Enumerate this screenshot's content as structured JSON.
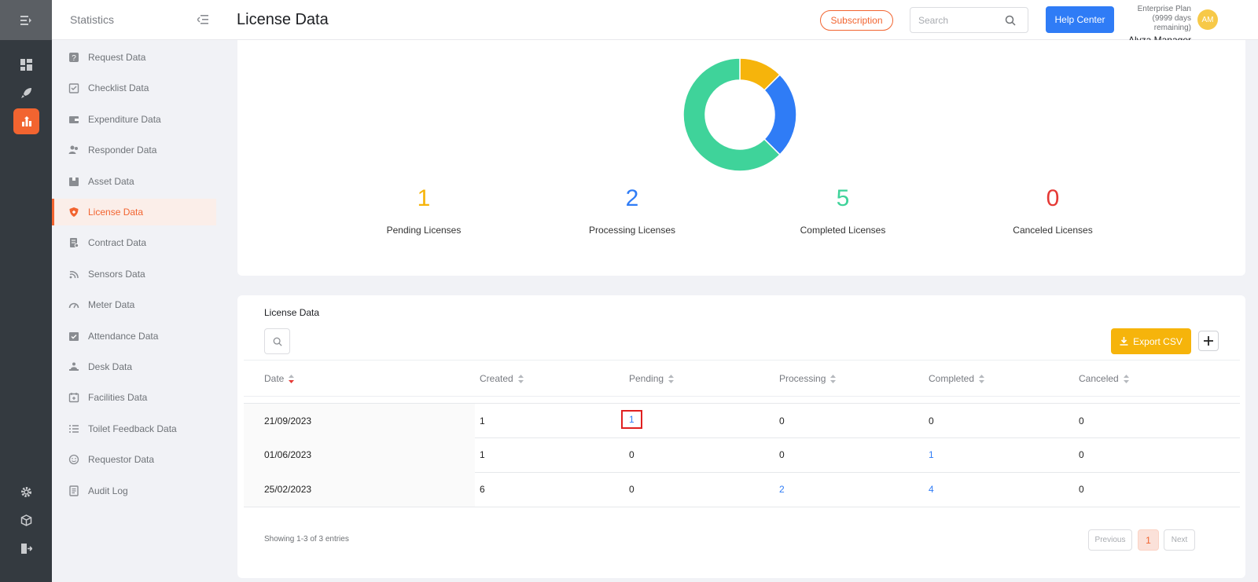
{
  "sidebar": {
    "title": "Statistics",
    "items": [
      {
        "label": "Request Data",
        "icon": "question-square-icon"
      },
      {
        "label": "Checklist Data",
        "icon": "checklist-icon"
      },
      {
        "label": "Expenditure Data",
        "icon": "wallet-icon"
      },
      {
        "label": "Responder Data",
        "icon": "users-icon"
      },
      {
        "label": "Asset Data",
        "icon": "box-icon"
      },
      {
        "label": "License Data",
        "icon": "shield-icon"
      },
      {
        "label": "Contract Data",
        "icon": "contract-icon"
      },
      {
        "label": "Sensors Data",
        "icon": "wifi-icon"
      },
      {
        "label": "Meter Data",
        "icon": "gauge-icon"
      },
      {
        "label": "Attendance Data",
        "icon": "attendance-icon"
      },
      {
        "label": "Desk Data",
        "icon": "desk-icon"
      },
      {
        "label": "Facilities Data",
        "icon": "calendar-icon"
      },
      {
        "label": "Toilet Feedback Data",
        "icon": "list-icon"
      },
      {
        "label": "Requestor Data",
        "icon": "smiley-icon"
      },
      {
        "label": "Audit Log",
        "icon": "log-icon"
      }
    ],
    "active": "License Data"
  },
  "header": {
    "title": "License Data",
    "subscription_label": "Subscription",
    "search_placeholder": "Search",
    "help_label": "Help Center",
    "plan": "Enterprise Plan",
    "plan_remaining": "(9999 days remaining)",
    "user_name": "Alyza Manager",
    "avatar_initials": "AM"
  },
  "summary": {
    "stats": [
      {
        "value": "1",
        "label": "Pending Licenses",
        "color": "#f6b40b"
      },
      {
        "value": "2",
        "label": "Processing Licenses",
        "color": "#2f7cf6"
      },
      {
        "value": "5",
        "label": "Completed Licenses",
        "color": "#3fd39a"
      },
      {
        "value": "0",
        "label": "Canceled Licenses",
        "color": "#e53935"
      }
    ]
  },
  "chart_data": {
    "type": "pie",
    "categories": [
      "Pending",
      "Processing",
      "Completed",
      "Canceled"
    ],
    "values": [
      1,
      2,
      5,
      0
    ],
    "colors": [
      "#f6b40b",
      "#2f7cf6",
      "#3fd39a",
      "#e53935"
    ],
    "donut": true
  },
  "table": {
    "title": "License Data",
    "export_label": "Export CSV",
    "columns": [
      "Date",
      "Created",
      "Pending",
      "Processing",
      "Completed",
      "Canceled"
    ],
    "rows": [
      [
        "21/09/2023",
        "1",
        "1",
        "0",
        "0",
        "0"
      ],
      [
        "01/06/2023",
        "1",
        "0",
        "0",
        "1",
        "0"
      ],
      [
        "25/02/2023",
        "6",
        "0",
        "2",
        "4",
        "0"
      ]
    ],
    "showing": "Showing 1-3 of 3 entries",
    "prev_label": "Previous",
    "current_page": "1",
    "next_label": "Next"
  }
}
